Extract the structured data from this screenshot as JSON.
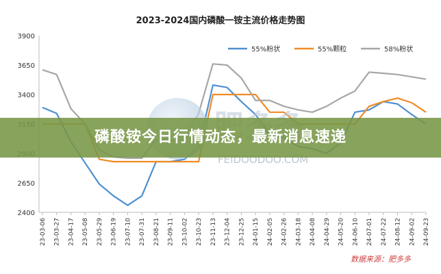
{
  "banner_text": "磷酸铵今日行情动态，最新消息速递",
  "watermark": {
    "text": "FEIDOODOO.COM",
    "text_cn": "肥多多"
  },
  "source_note": "数据来源：肥多多",
  "chart_data": {
    "type": "line",
    "title": "2023-2024国内磷酸一铵主流价格走势图",
    "xlabel": "",
    "ylabel": "",
    "ylim": [
      2400,
      3900
    ],
    "yticks": [
      2400,
      2650,
      2900,
      3150,
      3400,
      3650,
      3900
    ],
    "grid": false,
    "legend_position": "top-right",
    "x": [
      "23-03-06",
      "23-03-27",
      "23-04-17",
      "23-05-08",
      "23-05-29",
      "23-06-19",
      "23-07-10",
      "23-07-31",
      "23-08-21",
      "23-09-11",
      "23-10-02",
      "23-10-23",
      "23-11-13",
      "23-12-04",
      "23-12-25",
      "24-01-15",
      "24-02-05",
      "24-02-26",
      "24-03-18",
      "24-04-08",
      "24-04-29",
      "24-05-20",
      "24-06-10",
      "24-07-01",
      "24-07-22",
      "24-08-12",
      "24-09-02",
      "24-09-23"
    ],
    "series": [
      {
        "name": "55%粉状",
        "color": "#4e8fd0",
        "values": [
          3290,
          3240,
          3000,
          2820,
          2640,
          2540,
          2460,
          2540,
          2830,
          2830,
          2850,
          2950,
          3480,
          3460,
          3340,
          3230,
          3060,
          3030,
          2960,
          2940,
          2900,
          2990,
          3250,
          3270,
          3340,
          3320,
          3230,
          3150
        ]
      },
      {
        "name": "55%颗粒",
        "color": "#f08a25",
        "values": [
          3150,
          3150,
          3150,
          3150,
          2850,
          2830,
          2830,
          2830,
          2830,
          2830,
          2830,
          2830,
          3400,
          3400,
          3400,
          3400,
          3250,
          3250,
          3150,
          3150,
          3150,
          3150,
          3150,
          3300,
          3340,
          3370,
          3330,
          3250
        ]
      },
      {
        "name": "58%粉状",
        "color": "#a6a6a6",
        "values": [
          3610,
          3570,
          3280,
          3150,
          2930,
          2870,
          2860,
          2860,
          3020,
          3010,
          3020,
          3240,
          3660,
          3650,
          3540,
          3350,
          3350,
          3300,
          3270,
          3250,
          3300,
          3370,
          3430,
          3590,
          3580,
          3570,
          3550,
          3530
        ]
      }
    ]
  }
}
